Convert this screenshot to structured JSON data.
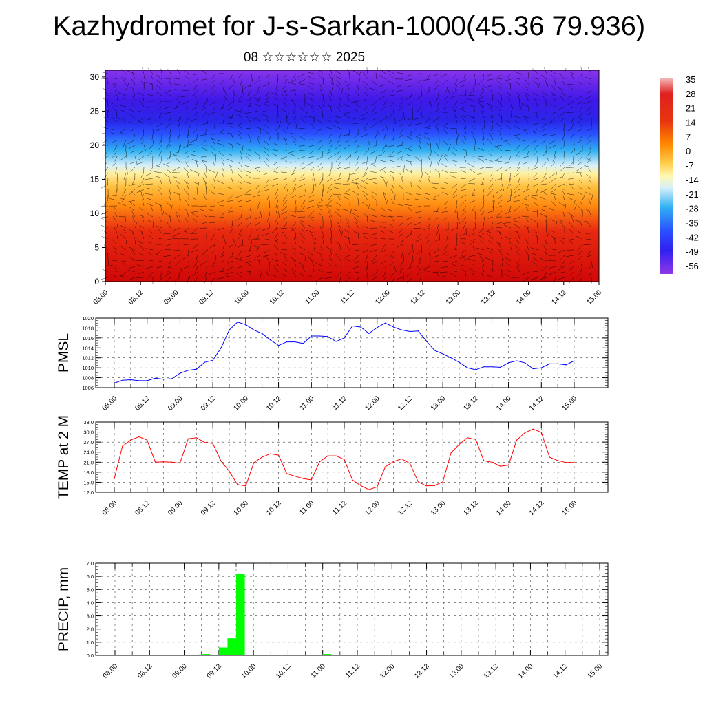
{
  "title": "Kazhydromet for J-s-Sarkan-1000(45.36 79.936)",
  "subtitle": "08 ☆☆☆☆☆☆ 2025",
  "x_ticks": [
    "08.00",
    "08.12",
    "09.00",
    "09.12",
    "10.00",
    "10.12",
    "11.00",
    "11.12",
    "12.00",
    "12.12",
    "13.00",
    "13.12",
    "14.00",
    "14.12",
    "15.00"
  ],
  "chart_data": [
    {
      "type": "heatmap",
      "name": "cross-section",
      "yticks": [
        0,
        5,
        10,
        15,
        20,
        25,
        30
      ],
      "ylim": [
        0,
        31
      ],
      "colorbar": {
        "labels": [
          "35",
          "28",
          "21",
          "14",
          "7",
          "0",
          "-7",
          "-14",
          "-21",
          "-28",
          "-35",
          "-42",
          "-49",
          "-56"
        ],
        "stops": [
          "#f2b2b2",
          "#d60000",
          "#e83010",
          "#ff7a00",
          "#ffae2a",
          "#ffd855",
          "#fff6a8",
          "#d6eef8",
          "#38b8f0",
          "#1a70ff",
          "#2a30ff",
          "#5a14f0",
          "#8a34e8"
        ]
      },
      "bands": [
        {
          "from": 0,
          "to": 8,
          "color": "#d41a10"
        },
        {
          "from": 8,
          "to": 13,
          "color": "#ff8a10"
        },
        {
          "from": 13,
          "to": 16,
          "color": "#ffdc5a"
        },
        {
          "from": 16,
          "to": 18,
          "color": "#cfeef8"
        },
        {
          "from": 18,
          "to": 21,
          "color": "#30a8f0"
        },
        {
          "from": 21,
          "to": 23,
          "color": "#2a50ff"
        },
        {
          "from": 23,
          "to": 27,
          "color": "#2e24e6"
        },
        {
          "from": 27,
          "to": 31,
          "color": "#7a30ee"
        }
      ]
    },
    {
      "type": "line",
      "ylabel": "PMSL",
      "color": "#0000ff",
      "ylim": [
        1006,
        1020
      ],
      "yticks": [
        "1006",
        "1008",
        "1010",
        "1012",
        "1014",
        "1016",
        "1018",
        "1020"
      ],
      "x": [
        0,
        0.25,
        0.5,
        0.75,
        1,
        1.25,
        1.5,
        1.75,
        2,
        2.25,
        2.5,
        2.75,
        3,
        3.25,
        3.5,
        3.75,
        4,
        4.25,
        4.5,
        4.75,
        5,
        5.25,
        5.5,
        5.75,
        6,
        6.25,
        6.5,
        6.75,
        7,
        7.25,
        7.5,
        7.75,
        8,
        8.25,
        8.5,
        8.75,
        9,
        9.25,
        9.5,
        9.75,
        10,
        10.25,
        10.5,
        10.75,
        11,
        11.25,
        11.5,
        11.75,
        12,
        12.25,
        12.5,
        12.75,
        13,
        13.25,
        13.5,
        13.75,
        14
      ],
      "values": [
        1006.9,
        1007.5,
        1007.6,
        1007.4,
        1007.4,
        1007.9,
        1007.7,
        1007.8,
        1008.9,
        1009.5,
        1009.7,
        1011.1,
        1011.5,
        1014.0,
        1017.6,
        1019.2,
        1018.7,
        1017.6,
        1016.9,
        1015.6,
        1014.5,
        1015.2,
        1015.2,
        1014.9,
        1016.4,
        1016.4,
        1016.3,
        1015.3,
        1016.0,
        1018.4,
        1018.2,
        1016.9,
        1018.1,
        1019.0,
        1018.2,
        1017.6,
        1017.3,
        1017.4,
        1015.4,
        1013.5,
        1012.8,
        1012.0,
        1011.1,
        1010.0,
        1009.6,
        1010.2,
        1010.2,
        1010.1,
        1011.0,
        1011.4,
        1011.0,
        1009.8,
        1010.0,
        1010.8,
        1010.8,
        1010.6,
        1011.4
      ]
    },
    {
      "type": "line",
      "ylabel": "TEMP at 2 M",
      "color": "#ff0000",
      "ylim": [
        12,
        33
      ],
      "yticks": [
        "12.0",
        "15.0",
        "18.0",
        "21.0",
        "24.0",
        "27.0",
        "30.0",
        "33.0"
      ],
      "x": [
        0,
        0.25,
        0.5,
        0.75,
        1,
        1.25,
        1.5,
        1.75,
        2,
        2.25,
        2.5,
        2.75,
        3,
        3.25,
        3.5,
        3.75,
        4,
        4.25,
        4.5,
        4.75,
        5,
        5.25,
        5.5,
        5.75,
        6,
        6.25,
        6.5,
        6.75,
        7,
        7.25,
        7.5,
        7.75,
        8,
        8.25,
        8.5,
        8.75,
        9,
        9.25,
        9.5,
        9.75,
        10,
        10.25,
        10.5,
        10.75,
        11,
        11.25,
        11.5,
        11.75,
        12,
        12.25,
        12.5,
        12.75,
        13,
        13.25,
        13.5,
        13.75,
        14
      ],
      "values": [
        16.1,
        25.8,
        27.6,
        28.6,
        27.6,
        21.0,
        21.1,
        21.0,
        20.7,
        28.0,
        28.3,
        26.9,
        26.6,
        21.3,
        18.3,
        14.3,
        13.9,
        20.9,
        22.5,
        23.5,
        23.1,
        17.6,
        16.8,
        16.1,
        15.7,
        21.1,
        22.9,
        22.9,
        21.8,
        15.7,
        14.0,
        12.8,
        13.6,
        19.6,
        21.2,
        22.0,
        20.6,
        15.1,
        13.9,
        14.0,
        15.1,
        23.8,
        26.3,
        28.3,
        27.8,
        21.4,
        21.0,
        19.8,
        20.1,
        27.6,
        29.8,
        30.9,
        29.9,
        22.5,
        21.5,
        20.9,
        20.9
      ]
    },
    {
      "type": "bar",
      "ylabel": "PRECIP, mm",
      "color": "#00ff00",
      "ylim": [
        0,
        7
      ],
      "yticks": [
        "0.0",
        "1.0",
        "2.0",
        "3.0",
        "4.0",
        "5.0",
        "6.0",
        "7.0"
      ],
      "x": [
        2.75,
        3.25,
        3.5,
        3.75,
        6.25
      ],
      "values": [
        0.1,
        0.6,
        1.3,
        6.2,
        0.1
      ]
    }
  ]
}
